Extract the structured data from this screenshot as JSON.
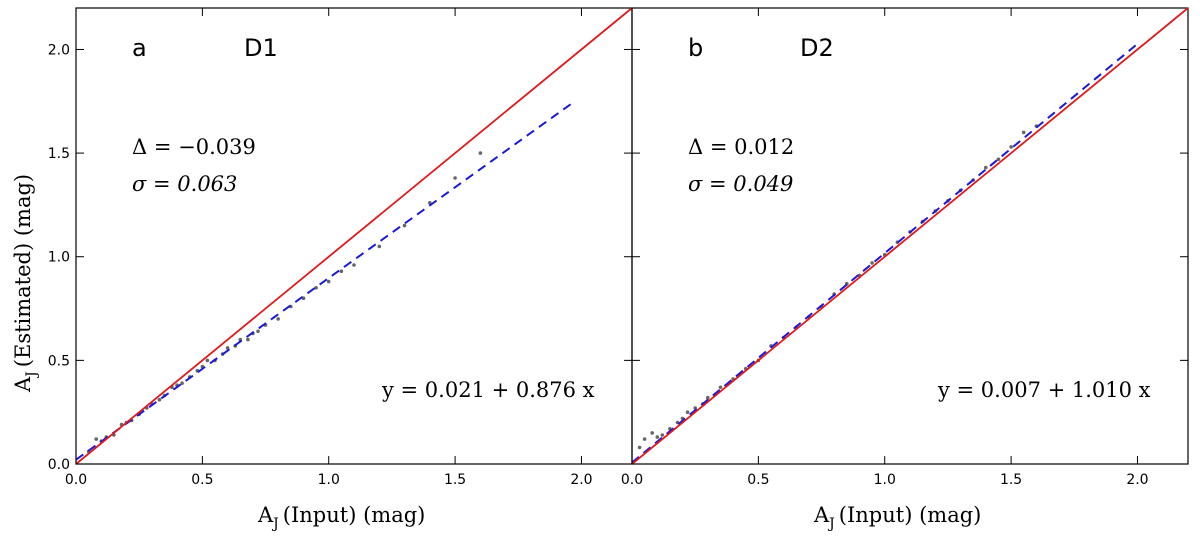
{
  "colors": {
    "identity_line": "#e0191c",
    "fit_line": "#1a1ad6",
    "points": "#333333",
    "axes": "#000000"
  },
  "chart_data": [
    {
      "type": "scatter",
      "panel_label": "a",
      "dataset": "D1",
      "xlabel_main": "A",
      "xlabel_sub": "J",
      "xlabel_rest": "(Input) (mag)",
      "ylabel_main": "A",
      "ylabel_sub": "J",
      "ylabel_rest": "(Estimated) (mag)",
      "xlim": [
        0,
        2.2
      ],
      "ylim": [
        0,
        2.2
      ],
      "xticks": [
        0.0,
        0.5,
        1.0,
        1.5,
        2.0
      ],
      "yticks": [
        0.0,
        0.5,
        1.0,
        1.5,
        2.0
      ],
      "xtick_labels": [
        "0.0",
        "0.5",
        "1.0",
        "1.5",
        "2.0"
      ],
      "ytick_labels": [
        "0.0",
        "0.5",
        "1.0",
        "1.5",
        "2.0"
      ],
      "delta_text": "Δ = −0.039",
      "sigma_text": "σ = 0.063",
      "fit_text": "y = 0.021 + 0.876 x",
      "fit": {
        "intercept": 0.021,
        "slope": 0.876,
        "x_range": [
          0,
          1.97
        ]
      },
      "identity": {
        "x_range": [
          0,
          2.2
        ]
      },
      "points": [
        [
          0.05,
          0.06
        ],
        [
          0.08,
          0.12
        ],
        [
          0.1,
          0.11
        ],
        [
          0.12,
          0.13
        ],
        [
          0.15,
          0.14
        ],
        [
          0.18,
          0.19
        ],
        [
          0.2,
          0.2
        ],
        [
          0.22,
          0.21
        ],
        [
          0.25,
          0.24
        ],
        [
          0.28,
          0.27
        ],
        [
          0.3,
          0.29
        ],
        [
          0.33,
          0.31
        ],
        [
          0.35,
          0.33
        ],
        [
          0.38,
          0.37
        ],
        [
          0.4,
          0.38
        ],
        [
          0.42,
          0.39
        ],
        [
          0.45,
          0.42
        ],
        [
          0.48,
          0.45
        ],
        [
          0.5,
          0.47
        ],
        [
          0.52,
          0.5
        ],
        [
          0.55,
          0.5
        ],
        [
          0.58,
          0.53
        ],
        [
          0.6,
          0.56
        ],
        [
          0.63,
          0.57
        ],
        [
          0.65,
          0.6
        ],
        [
          0.68,
          0.6
        ],
        [
          0.7,
          0.63
        ],
        [
          0.72,
          0.64
        ],
        [
          0.75,
          0.67
        ],
        [
          0.8,
          0.7
        ],
        [
          0.85,
          0.76
        ],
        [
          0.9,
          0.8
        ],
        [
          0.95,
          0.85
        ],
        [
          1.0,
          0.88
        ],
        [
          1.05,
          0.93
        ],
        [
          1.1,
          0.96
        ],
        [
          1.2,
          1.05
        ],
        [
          1.3,
          1.15
        ],
        [
          1.4,
          1.26
        ],
        [
          1.5,
          1.38
        ],
        [
          1.6,
          1.5
        ]
      ]
    },
    {
      "type": "scatter",
      "panel_label": "b",
      "dataset": "D2",
      "xlabel_main": "A",
      "xlabel_sub": "J",
      "xlabel_rest": "(Input) (mag)",
      "xlim": [
        0,
        2.2
      ],
      "ylim": [
        0,
        2.2
      ],
      "xticks": [
        0.0,
        0.5,
        1.0,
        1.5,
        2.0
      ],
      "xtick_labels": [
        "0.0",
        "0.5",
        "1.0",
        "1.5",
        "2.0"
      ],
      "yticks": [
        0.0,
        0.5,
        1.0,
        1.5,
        2.0
      ],
      "delta_text": "Δ = 0.012",
      "sigma_text": "σ = 0.049",
      "fit_text": "y = 0.007 + 1.010 x",
      "fit": {
        "intercept": 0.007,
        "slope": 1.01,
        "x_range": [
          0,
          2.0
        ]
      },
      "identity": {
        "x_range": [
          0,
          2.2
        ]
      },
      "points": [
        [
          0.03,
          0.08
        ],
        [
          0.05,
          0.12
        ],
        [
          0.08,
          0.15
        ],
        [
          0.1,
          0.13
        ],
        [
          0.12,
          0.14
        ],
        [
          0.15,
          0.17
        ],
        [
          0.18,
          0.2
        ],
        [
          0.2,
          0.22
        ],
        [
          0.22,
          0.25
        ],
        [
          0.25,
          0.27
        ],
        [
          0.28,
          0.29
        ],
        [
          0.3,
          0.32
        ],
        [
          0.35,
          0.37
        ],
        [
          0.4,
          0.41
        ],
        [
          0.45,
          0.46
        ],
        [
          0.5,
          0.5
        ],
        [
          0.55,
          0.57
        ],
        [
          0.6,
          0.61
        ],
        [
          0.65,
          0.66
        ],
        [
          0.7,
          0.71
        ],
        [
          0.75,
          0.76
        ],
        [
          0.8,
          0.82
        ],
        [
          0.85,
          0.87
        ],
        [
          0.9,
          0.91
        ],
        [
          0.95,
          0.97
        ],
        [
          1.0,
          1.01
        ],
        [
          1.05,
          1.07
        ],
        [
          1.1,
          1.12
        ],
        [
          1.15,
          1.17
        ],
        [
          1.2,
          1.22
        ],
        [
          1.25,
          1.27
        ],
        [
          1.3,
          1.32
        ],
        [
          1.35,
          1.37
        ],
        [
          1.4,
          1.43
        ],
        [
          1.45,
          1.47
        ],
        [
          1.5,
          1.53
        ],
        [
          1.55,
          1.6
        ],
        [
          1.6,
          1.63
        ]
      ]
    }
  ]
}
